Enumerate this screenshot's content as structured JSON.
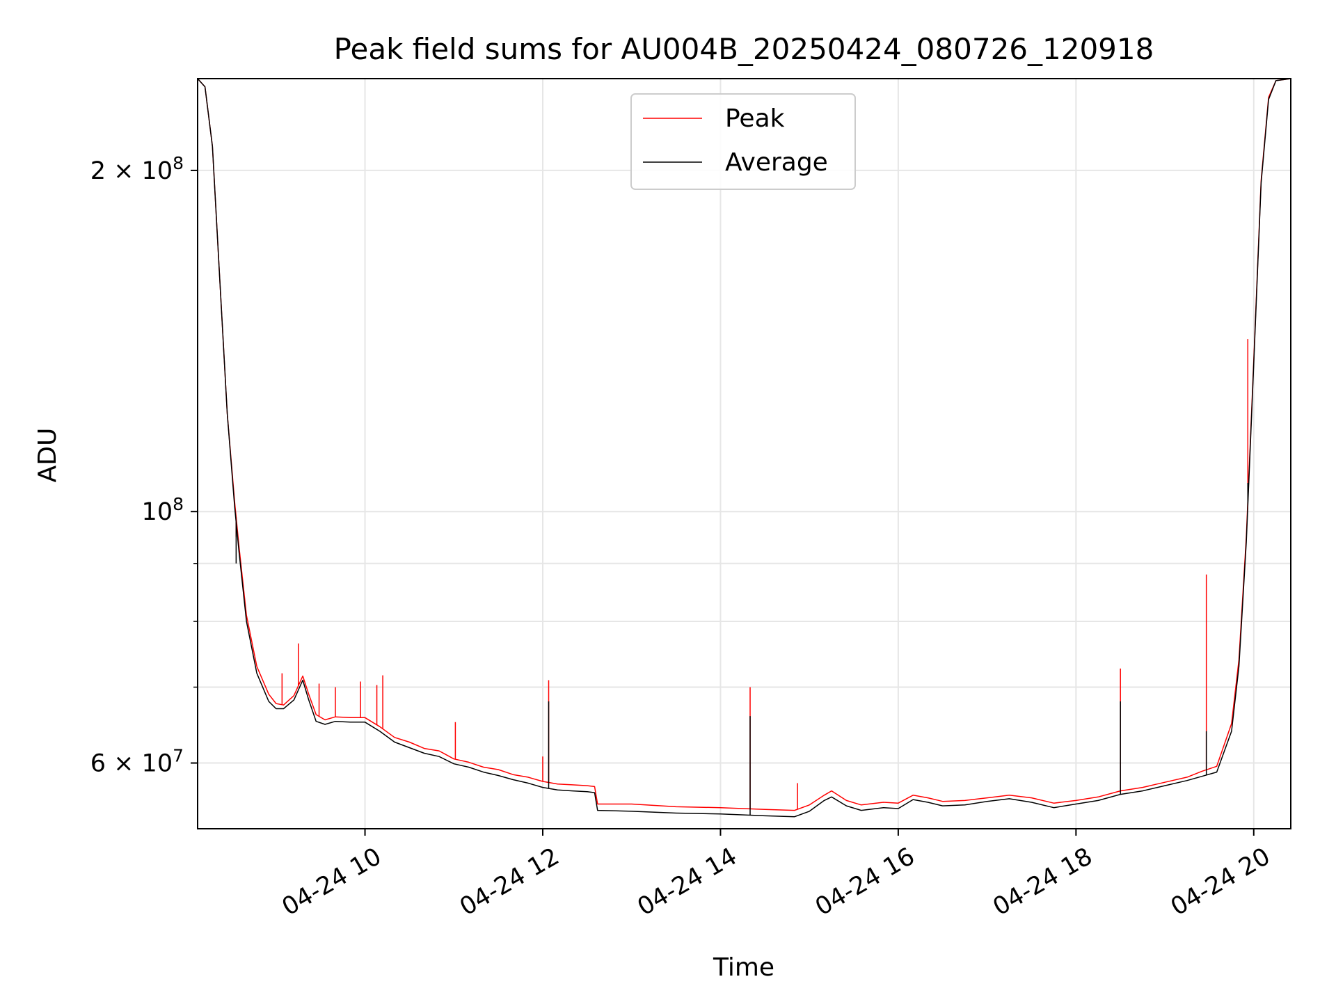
{
  "chart_data": {
    "type": "line",
    "title": "Peak field sums for AU004B_20250424_080726_120918",
    "xlabel": "Time",
    "ylabel": "ADU",
    "yscale": "log",
    "grid": true,
    "legend_position": "upper center",
    "xlim": [
      "2025-04-24 08:07",
      "2025-04-24 20:25"
    ],
    "ylim": [
      52500000,
      241000000
    ],
    "x_ticks": [
      {
        "value": "2025-04-24 10:00",
        "label": "04-24 10"
      },
      {
        "value": "2025-04-24 12:00",
        "label": "04-24 12"
      },
      {
        "value": "2025-04-24 14:00",
        "label": "04-24 14"
      },
      {
        "value": "2025-04-24 16:00",
        "label": "04-24 16"
      },
      {
        "value": "2025-04-24 18:00",
        "label": "04-24 18"
      },
      {
        "value": "2025-04-24 20:00",
        "label": "04-24 20"
      }
    ],
    "y_ticks": [
      {
        "value": 200000000,
        "mantissa": "2",
        "times": "×",
        "base": "10",
        "exp": "8"
      },
      {
        "value": 100000000,
        "mantissa": "",
        "times": "",
        "base": "10",
        "exp": "8"
      },
      {
        "value": 60000000,
        "mantissa": "6",
        "times": "×",
        "base": "10",
        "exp": "7"
      }
    ],
    "y_minor_ticks": [
      70000000,
      80000000,
      90000000
    ],
    "series": [
      {
        "name": "Peak",
        "color": "#ff0000",
        "points": [
          [
            "2025-04-24 08:07",
            241000000
          ],
          [
            "2025-04-24 08:12",
            237000000
          ],
          [
            "2025-04-24 08:17",
            210000000
          ],
          [
            "2025-04-24 08:22",
            160000000
          ],
          [
            "2025-04-24 08:27",
            122000000
          ],
          [
            "2025-04-24 08:32",
            102000000
          ],
          [
            "2025-04-24 08:35",
            93000000
          ],
          [
            "2025-04-24 08:40",
            81000000
          ],
          [
            "2025-04-24 08:47",
            73000000
          ],
          [
            "2025-04-24 08:55",
            69000000
          ],
          [
            "2025-04-24 09:00",
            67700000
          ],
          [
            "2025-04-24 09:05",
            67500000
          ],
          [
            "2025-04-24 09:12",
            68800000
          ],
          [
            "2025-04-24 09:18",
            71600000
          ],
          [
            "2025-04-24 09:22",
            69000000
          ],
          [
            "2025-04-24 09:27",
            66200000
          ],
          [
            "2025-04-24 09:33",
            65500000
          ],
          [
            "2025-04-24 09:40",
            65900000
          ],
          [
            "2025-04-24 09:50",
            65800000
          ],
          [
            "2025-04-24 10:00",
            65800000
          ],
          [
            "2025-04-24 10:10",
            64600000
          ],
          [
            "2025-04-24 10:20",
            63200000
          ],
          [
            "2025-04-24 10:30",
            62600000
          ],
          [
            "2025-04-24 10:40",
            61800000
          ],
          [
            "2025-04-24 10:50",
            61500000
          ],
          [
            "2025-04-24 11:00",
            60500000
          ],
          [
            "2025-04-24 11:10",
            60100000
          ],
          [
            "2025-04-24 11:20",
            59500000
          ],
          [
            "2025-04-24 11:30",
            59200000
          ],
          [
            "2025-04-24 11:40",
            58600000
          ],
          [
            "2025-04-24 11:50",
            58300000
          ],
          [
            "2025-04-24 12:00",
            57800000
          ],
          [
            "2025-04-24 12:10",
            57500000
          ],
          [
            "2025-04-24 12:20",
            57400000
          ],
          [
            "2025-04-24 12:30",
            57300000
          ],
          [
            "2025-04-24 12:35",
            57200000
          ],
          [
            "2025-04-24 12:37",
            55200000
          ],
          [
            "2025-04-24 13:00",
            55200000
          ],
          [
            "2025-04-24 13:30",
            54900000
          ],
          [
            "2025-04-24 14:00",
            54800000
          ],
          [
            "2025-04-24 14:30",
            54600000
          ],
          [
            "2025-04-24 14:50",
            54500000
          ],
          [
            "2025-04-24 15:00",
            55100000
          ],
          [
            "2025-04-24 15:10",
            56200000
          ],
          [
            "2025-04-24 15:15",
            56700000
          ],
          [
            "2025-04-24 15:25",
            55600000
          ],
          [
            "2025-04-24 15:35",
            55100000
          ],
          [
            "2025-04-24 15:50",
            55400000
          ],
          [
            "2025-04-24 16:00",
            55300000
          ],
          [
            "2025-04-24 16:10",
            56200000
          ],
          [
            "2025-04-24 16:20",
            55900000
          ],
          [
            "2025-04-24 16:30",
            55500000
          ],
          [
            "2025-04-24 16:45",
            55600000
          ],
          [
            "2025-04-24 17:00",
            55900000
          ],
          [
            "2025-04-24 17:15",
            56200000
          ],
          [
            "2025-04-24 17:30",
            55900000
          ],
          [
            "2025-04-24 17:45",
            55300000
          ],
          [
            "2025-04-24 18:00",
            55600000
          ],
          [
            "2025-04-24 18:15",
            56000000
          ],
          [
            "2025-04-24 18:30",
            56700000
          ],
          [
            "2025-04-24 18:45",
            57100000
          ],
          [
            "2025-04-24 19:00",
            57700000
          ],
          [
            "2025-04-24 19:15",
            58300000
          ],
          [
            "2025-04-24 19:25",
            59000000
          ],
          [
            "2025-04-24 19:35",
            59600000
          ],
          [
            "2025-04-24 19:45",
            65000000
          ],
          [
            "2025-04-24 19:50",
            74000000
          ],
          [
            "2025-04-24 19:55",
            95000000
          ],
          [
            "2025-04-24 20:00",
            136000000
          ],
          [
            "2025-04-24 20:05",
            196000000
          ],
          [
            "2025-04-24 20:10",
            232000000
          ],
          [
            "2025-04-24 20:15",
            240000000
          ],
          [
            "2025-04-24 20:25",
            241000000
          ]
        ],
        "spikes": [
          [
            "2025-04-24 08:33",
            95000000
          ],
          [
            "2025-04-24 09:04",
            72000000
          ],
          [
            "2025-04-24 09:15",
            76500000
          ],
          [
            "2025-04-24 09:29",
            70500000
          ],
          [
            "2025-04-24 09:40",
            70000000
          ],
          [
            "2025-04-24 09:57",
            70800000
          ],
          [
            "2025-04-24 10:08",
            70300000
          ],
          [
            "2025-04-24 10:12",
            71700000
          ],
          [
            "2025-04-24 11:01",
            65200000
          ],
          [
            "2025-04-24 12:00",
            60800000
          ],
          [
            "2025-04-24 12:04",
            71000000
          ],
          [
            "2025-04-24 14:20",
            70000000
          ],
          [
            "2025-04-24 14:52",
            57600000
          ],
          [
            "2025-04-24 18:30",
            72700000
          ],
          [
            "2025-04-24 19:28",
            88000000
          ],
          [
            "2025-04-24 19:56",
            142000000
          ]
        ]
      },
      {
        "name": "Average",
        "color": "#000000",
        "points": [
          [
            "2025-04-24 08:07",
            241000000
          ],
          [
            "2025-04-24 08:12",
            237000000
          ],
          [
            "2025-04-24 08:17",
            210000000
          ],
          [
            "2025-04-24 08:22",
            160000000
          ],
          [
            "2025-04-24 08:27",
            122000000
          ],
          [
            "2025-04-24 08:32",
            101000000
          ],
          [
            "2025-04-24 08:35",
            92000000
          ],
          [
            "2025-04-24 08:40",
            80000000
          ],
          [
            "2025-04-24 08:47",
            72000000
          ],
          [
            "2025-04-24 08:55",
            68000000
          ],
          [
            "2025-04-24 09:00",
            67000000
          ],
          [
            "2025-04-24 09:05",
            67000000
          ],
          [
            "2025-04-24 09:12",
            68200000
          ],
          [
            "2025-04-24 09:18",
            71000000
          ],
          [
            "2025-04-24 09:22",
            68200000
          ],
          [
            "2025-04-24 09:27",
            65300000
          ],
          [
            "2025-04-24 09:33",
            64900000
          ],
          [
            "2025-04-24 09:40",
            65300000
          ],
          [
            "2025-04-24 09:50",
            65200000
          ],
          [
            "2025-04-24 10:00",
            65200000
          ],
          [
            "2025-04-24 10:10",
            64000000
          ],
          [
            "2025-04-24 10:20",
            62600000
          ],
          [
            "2025-04-24 10:30",
            61900000
          ],
          [
            "2025-04-24 10:40",
            61200000
          ],
          [
            "2025-04-24 10:50",
            60800000
          ],
          [
            "2025-04-24 11:00",
            59900000
          ],
          [
            "2025-04-24 11:10",
            59500000
          ],
          [
            "2025-04-24 11:20",
            58900000
          ],
          [
            "2025-04-24 11:30",
            58500000
          ],
          [
            "2025-04-24 11:40",
            58000000
          ],
          [
            "2025-04-24 11:50",
            57600000
          ],
          [
            "2025-04-24 12:00",
            57100000
          ],
          [
            "2025-04-24 12:10",
            56800000
          ],
          [
            "2025-04-24 12:20",
            56700000
          ],
          [
            "2025-04-24 12:30",
            56600000
          ],
          [
            "2025-04-24 12:35",
            56500000
          ],
          [
            "2025-04-24 12:37",
            54500000
          ],
          [
            "2025-04-24 13:00",
            54400000
          ],
          [
            "2025-04-24 13:30",
            54200000
          ],
          [
            "2025-04-24 14:00",
            54100000
          ],
          [
            "2025-04-24 14:30",
            53900000
          ],
          [
            "2025-04-24 14:50",
            53800000
          ],
          [
            "2025-04-24 15:00",
            54400000
          ],
          [
            "2025-04-24 15:10",
            55600000
          ],
          [
            "2025-04-24 15:15",
            56000000
          ],
          [
            "2025-04-24 15:25",
            55000000
          ],
          [
            "2025-04-24 15:35",
            54500000
          ],
          [
            "2025-04-24 15:50",
            54800000
          ],
          [
            "2025-04-24 16:00",
            54700000
          ],
          [
            "2025-04-24 16:10",
            55700000
          ],
          [
            "2025-04-24 16:20",
            55400000
          ],
          [
            "2025-04-24 16:30",
            55000000
          ],
          [
            "2025-04-24 16:45",
            55100000
          ],
          [
            "2025-04-24 17:00",
            55500000
          ],
          [
            "2025-04-24 17:15",
            55800000
          ],
          [
            "2025-04-24 17:30",
            55400000
          ],
          [
            "2025-04-24 17:45",
            54800000
          ],
          [
            "2025-04-24 18:00",
            55200000
          ],
          [
            "2025-04-24 18:15",
            55600000
          ],
          [
            "2025-04-24 18:30",
            56300000
          ],
          [
            "2025-04-24 18:45",
            56700000
          ],
          [
            "2025-04-24 19:00",
            57300000
          ],
          [
            "2025-04-24 19:15",
            57900000
          ],
          [
            "2025-04-24 19:25",
            58400000
          ],
          [
            "2025-04-24 19:35",
            58900000
          ],
          [
            "2025-04-24 19:45",
            64000000
          ],
          [
            "2025-04-24 19:50",
            73000000
          ],
          [
            "2025-04-24 19:55",
            94000000
          ],
          [
            "2025-04-24 20:00",
            135000000
          ],
          [
            "2025-04-24 20:05",
            195000000
          ],
          [
            "2025-04-24 20:10",
            231000000
          ],
          [
            "2025-04-24 20:15",
            240000000
          ],
          [
            "2025-04-24 20:25",
            241000000
          ]
        ],
        "spikes": [
          [
            "2025-04-24 08:33",
            90000000
          ],
          [
            "2025-04-24 12:04",
            68000000
          ],
          [
            "2025-04-24 14:20",
            66000000
          ],
          [
            "2025-04-24 18:30",
            68000000
          ],
          [
            "2025-04-24 19:28",
            64000000
          ],
          [
            "2025-04-24 19:56",
            106000000
          ]
        ]
      }
    ]
  }
}
